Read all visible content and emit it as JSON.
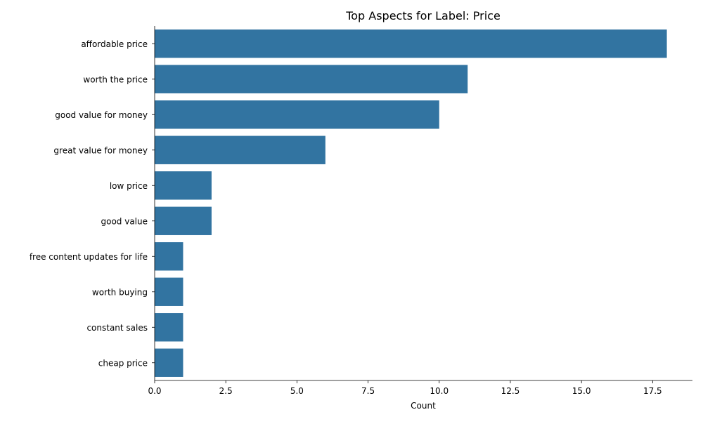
{
  "chart_data": {
    "type": "bar",
    "orientation": "horizontal",
    "title": "Top Aspects for Label: Price",
    "xlabel": "Count",
    "ylabel": "",
    "categories": [
      "affordable price",
      "worth the price",
      "good value for money",
      "great value for money",
      "low price",
      "good value",
      "free content updates for life",
      "worth buying",
      "constant sales",
      "cheap price"
    ],
    "values": [
      18,
      11,
      10,
      6,
      2,
      2,
      1,
      1,
      1,
      1
    ],
    "xlim": [
      0,
      18.9
    ],
    "xticks": [
      0.0,
      2.5,
      5.0,
      7.5,
      10.0,
      12.5,
      15.0,
      17.5
    ],
    "xtick_labels": [
      "0.0",
      "2.5",
      "5.0",
      "7.5",
      "10.0",
      "12.5",
      "15.0",
      "17.5"
    ],
    "bar_color": "#3274a1",
    "grid": false,
    "legend": "none"
  }
}
